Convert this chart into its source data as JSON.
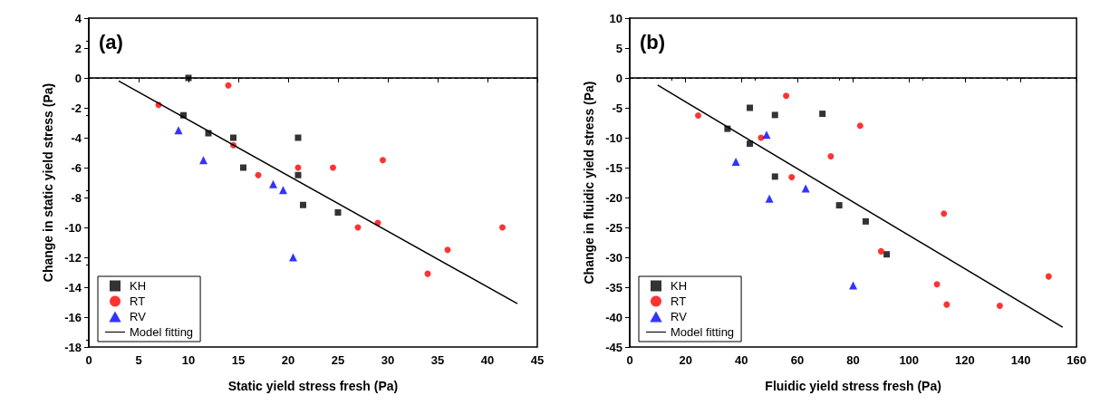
{
  "chart_data": [
    {
      "type": "scatter",
      "title": "(a)",
      "xlabel": "Static yield stress fresh (Pa)",
      "ylabel": "Change in static yield stress (Pa)",
      "xlim": [
        0,
        45
      ],
      "xticks": [
        0,
        5,
        10,
        15,
        20,
        25,
        30,
        35,
        40,
        45
      ],
      "ylim": [
        -18,
        4
      ],
      "yticks": [
        -18,
        -16,
        -14,
        -12,
        -10,
        -8,
        -6,
        -4,
        -2,
        0,
        2,
        4
      ],
      "legend": "bottom left",
      "grid": false,
      "ref_lines": [
        {
          "axis": "y",
          "value": 0,
          "line_style": "dashed",
          "color": "#000000"
        }
      ],
      "series": [
        {
          "name": "KH",
          "color": "#000000",
          "marker": "square",
          "x": [
            10,
            9.5,
            12,
            14.5,
            15.5,
            21,
            21,
            21.5,
            25
          ],
          "values": [
            0,
            -2.5,
            -3.7,
            -4,
            -6,
            -4,
            -6.5,
            -8.5,
            -9
          ]
        },
        {
          "name": "RT",
          "color": "#ff0000",
          "marker": "circle",
          "x": [
            7,
            14,
            14.5,
            17,
            21,
            24.5,
            29.5,
            27,
            29,
            41.5,
            36,
            34
          ],
          "values": [
            -1.8,
            -0.5,
            -4.5,
            -6.5,
            -6,
            -6,
            -5.5,
            -10,
            -9.7,
            -10,
            -11.5,
            -13.1
          ]
        },
        {
          "name": "RV",
          "color": "#0000ff",
          "marker": "triangle",
          "x": [
            9,
            11.5,
            18.5,
            19.5,
            20.5
          ],
          "values": [
            -3.5,
            -5.5,
            -7.1,
            -7.5,
            -12
          ]
        },
        {
          "name": "Model fitting",
          "type": "line",
          "color": "#000000",
          "marker": "none",
          "line_style": "solid",
          "x": [
            3,
            43
          ],
          "values": [
            -0.2,
            -15.1
          ]
        }
      ]
    },
    {
      "type": "scatter",
      "title": "(b)",
      "xlabel": "Fluidic yield stress fresh (Pa)",
      "ylabel": "Change in fluidic yield stress (Pa)",
      "xlim": [
        0,
        160
      ],
      "xticks": [
        0,
        20,
        40,
        60,
        80,
        100,
        120,
        140,
        160
      ],
      "ylim": [
        -45,
        10
      ],
      "yticks": [
        -45,
        -40,
        -35,
        -30,
        -25,
        -20,
        -15,
        -10,
        -5,
        0,
        5,
        10
      ],
      "legend": "bottom left",
      "grid": false,
      "ref_lines": [
        {
          "axis": "y",
          "value": 0,
          "line_style": "dashed",
          "color": "#000000"
        }
      ],
      "series": [
        {
          "name": "KH",
          "color": "#000000",
          "marker": "square",
          "x": [
            35,
            43,
            43,
            52,
            52,
            69,
            75,
            84.5,
            92
          ],
          "values": [
            -8.5,
            -5,
            -11,
            -6.2,
            -16.5,
            -6,
            -21.3,
            -24,
            -29.5
          ]
        },
        {
          "name": "RT",
          "color": "#ff0000",
          "marker": "circle",
          "x": [
            24.5,
            47,
            56,
            58,
            72,
            82.5,
            112.5,
            90,
            110,
            113.5,
            132.5,
            150
          ],
          "values": [
            -6.3,
            -10,
            -3,
            -16.6,
            -13.1,
            -8,
            -22.7,
            -29,
            -34.5,
            -37.9,
            -38.1,
            -33.2
          ]
        },
        {
          "name": "RV",
          "color": "#0000ff",
          "marker": "triangle",
          "x": [
            38,
            49,
            50,
            63,
            80
          ],
          "values": [
            -14,
            -9.5,
            -20.2,
            -18.5,
            -34.7
          ]
        },
        {
          "name": "Model fitting",
          "type": "line",
          "color": "#000000",
          "marker": "none",
          "line_style": "solid",
          "x": [
            10,
            155
          ],
          "values": [
            -1.2,
            -41.7
          ]
        }
      ]
    }
  ]
}
